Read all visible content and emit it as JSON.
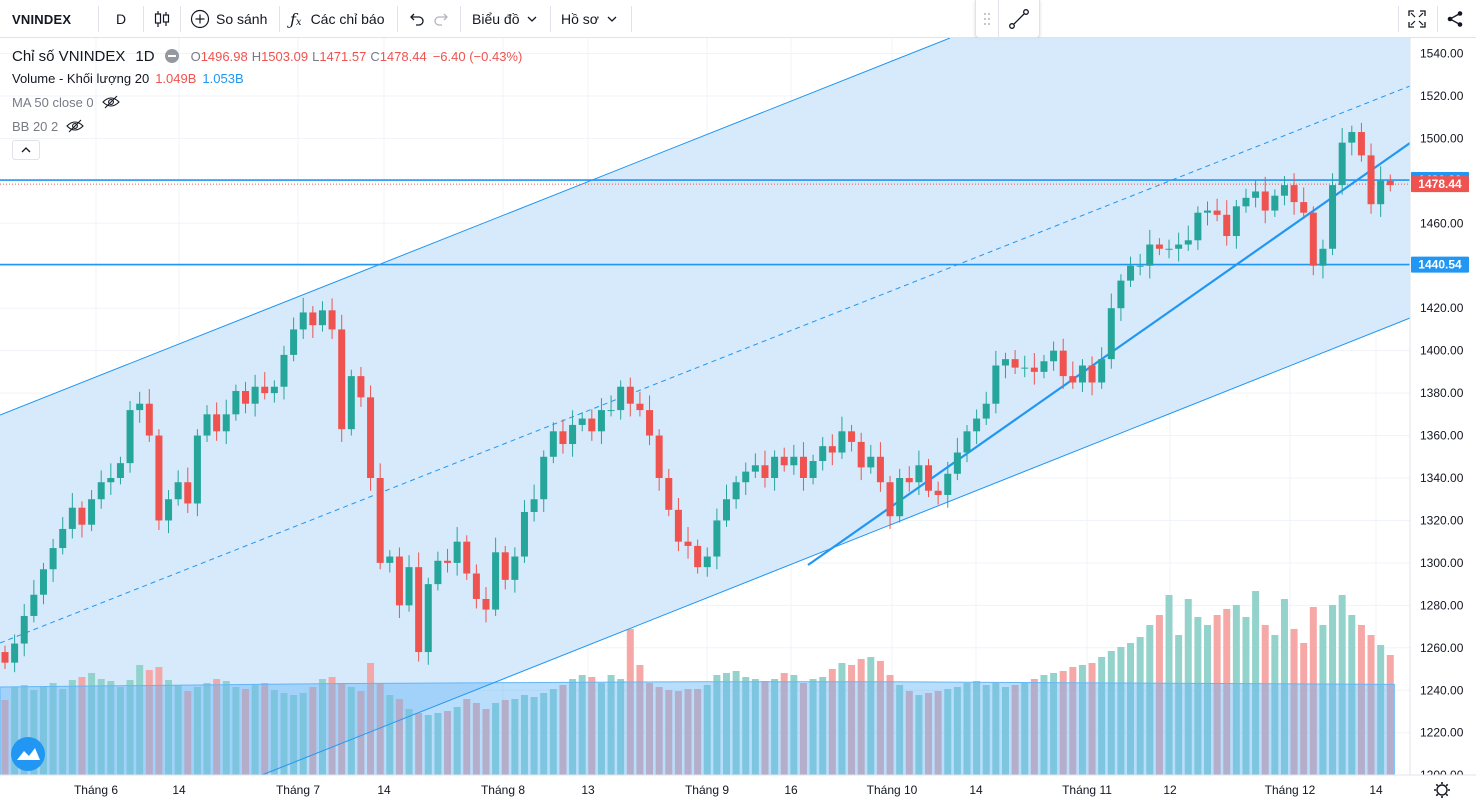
{
  "toolbar": {
    "symbol": "VNINDEX",
    "interval": "D",
    "compare_label": "So sánh",
    "indicators_label": "Các chỉ báo",
    "chart_label": "Biểu đồ",
    "profile_label": "Hồ sơ",
    "icons": [
      "candles-icon",
      "plus-circle-icon",
      "fx-icon",
      "undo-icon",
      "redo-icon",
      "fullscreen-icon",
      "share-icon",
      "drag-handle-icon",
      "trend-line-tool-icon"
    ]
  },
  "legend": {
    "title": "Chỉ số VNINDEX",
    "interval": "1D",
    "o_label": "O",
    "o_value": "1496.98",
    "h_label": "H",
    "h_value": "1503.09",
    "l_label": "L",
    "l_value": "1471.57",
    "c_label": "C",
    "c_value": "1478.44",
    "change": "−6.40 (−0.43%)",
    "volume_label": "Volume - Khối lượng 20",
    "volume_value": "1.049B",
    "volume_ma_value": "1.053B",
    "ma_label": "MA 50 close 0",
    "bb_label": "BB 20 2"
  },
  "colors": {
    "up": "#26a69a",
    "down": "#ef5350",
    "line": "#2196f3",
    "channel_fill": "#cfe6fa",
    "axis_text": "#131722"
  },
  "chart_data": {
    "type": "candlestick",
    "ylim": [
      1195,
      1545
    ],
    "y_ticks": [
      1200,
      1220,
      1240,
      1260,
      1280,
      1300,
      1320,
      1340,
      1360,
      1380,
      1400,
      1420,
      1440,
      1460,
      1480,
      1500,
      1520,
      1540
    ],
    "x_ticks": [
      "Tháng 6",
      "14",
      "Tháng 7",
      "14",
      "Tháng 8",
      "13",
      "Tháng 9",
      "16",
      "Tháng 10",
      "14",
      "Tháng 11",
      "12",
      "Tháng 12",
      "14"
    ],
    "price_labels": [
      {
        "value": 1480.39,
        "label": "1480.39",
        "color": "#2196f3"
      },
      {
        "value": 1478.44,
        "label": "1478.44",
        "color": "#ef5350"
      },
      {
        "value": 1440.54,
        "label": "1440.54",
        "color": "#2196f3"
      }
    ],
    "closes": [
      1253,
      1262,
      1275,
      1285,
      1297,
      1307,
      1316,
      1326,
      1318,
      1330,
      1338,
      1340,
      1347,
      1372,
      1375,
      1360,
      1320,
      1330,
      1338,
      1328,
      1360,
      1370,
      1362,
      1370,
      1381,
      1375,
      1383,
      1380,
      1383,
      1398,
      1410,
      1418,
      1412,
      1419,
      1410,
      1363,
      1388,
      1378,
      1340,
      1300,
      1303,
      1280,
      1298,
      1258,
      1290,
      1301,
      1300,
      1310,
      1295,
      1283,
      1278,
      1305,
      1292,
      1303,
      1324,
      1330,
      1350,
      1362,
      1356,
      1365,
      1368,
      1362,
      1372,
      1372,
      1383,
      1375,
      1372,
      1360,
      1340,
      1325,
      1310,
      1308,
      1298,
      1303,
      1320,
      1330,
      1338,
      1343,
      1346,
      1340,
      1350,
      1346,
      1350,
      1340,
      1348,
      1355,
      1352,
      1362,
      1357,
      1345,
      1350,
      1338,
      1322,
      1340,
      1338,
      1346,
      1334,
      1332,
      1342,
      1352,
      1362,
      1368,
      1375,
      1393,
      1396,
      1392,
      1392,
      1390,
      1395,
      1400,
      1388,
      1385,
      1393,
      1385,
      1396,
      1420,
      1433,
      1440,
      1440,
      1450,
      1448,
      1448,
      1450,
      1452,
      1465,
      1466,
      1464,
      1454,
      1468,
      1472,
      1475,
      1466,
      1473,
      1478,
      1470,
      1465,
      1440,
      1448,
      1478,
      1498,
      1503,
      1492,
      1469,
      1480,
      1478
    ],
    "first_candle": [
      1258,
      1256,
      1262,
      1250
    ],
    "volume_heights": [
      75,
      88,
      90,
      85,
      88,
      92,
      86,
      95,
      98,
      102,
      96,
      94,
      88,
      95,
      110,
      105,
      108,
      95,
      90,
      84,
      88,
      92,
      96,
      94,
      88,
      86,
      90,
      92,
      85,
      82,
      80,
      82,
      88,
      96,
      98,
      92,
      88,
      84,
      112,
      92,
      80,
      76,
      66,
      62,
      60,
      62,
      64,
      68,
      76,
      72,
      66,
      72,
      75,
      76,
      80,
      78,
      82,
      86,
      90,
      96,
      100,
      98,
      92,
      100,
      96,
      146,
      110,
      92,
      88,
      85,
      84,
      86,
      86,
      90,
      100,
      102,
      104,
      98,
      96,
      94,
      96,
      102,
      100,
      92,
      96,
      98,
      106,
      112,
      110,
      116,
      118,
      114,
      100,
      90,
      84,
      80,
      82,
      84,
      86,
      88,
      92,
      94,
      90,
      92,
      88,
      90,
      92,
      96,
      100,
      102,
      104,
      108,
      110,
      112,
      118,
      124,
      128,
      132,
      138,
      150,
      160,
      180,
      140,
      176,
      158,
      150,
      160,
      166,
      170,
      158,
      184,
      150,
      140,
      176,
      146,
      132,
      168,
      150,
      170,
      180,
      160,
      150,
      140,
      130,
      120,
      150,
      140
    ],
    "volume_ma_level": [
      1.0,
      1.02,
      1.04,
      1.05,
      1.06,
      1.06,
      1.05,
      1.04,
      1.03
    ]
  }
}
